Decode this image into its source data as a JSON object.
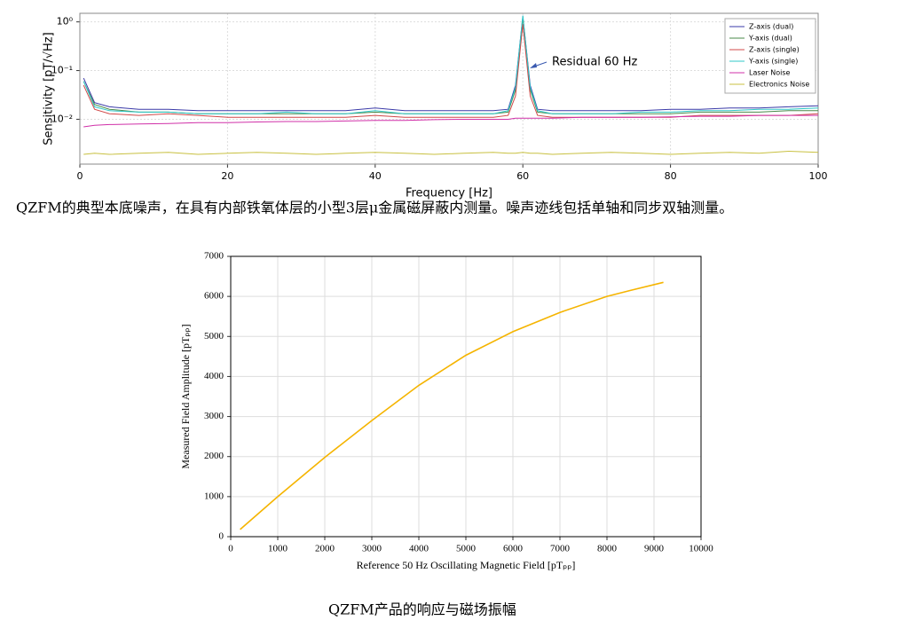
{
  "chart_data": [
    {
      "type": "line",
      "xlabel": "Frequency [Hz]",
      "ylabel": "Sensitivity [pT/√Hz]",
      "annotation": "Residual 60 Hz",
      "log_y": true,
      "grid": true,
      "legend": "upper right",
      "xlim": [
        0,
        100
      ],
      "xticks": [
        0,
        20,
        40,
        60,
        80,
        100
      ],
      "ylim": [
        0.0012,
        1.5
      ],
      "yticks": [
        {
          "value": 0.01,
          "label": "10⁻²"
        },
        {
          "value": 0.1,
          "label": "10⁻¹"
        },
        {
          "value": 1,
          "label": "10⁰"
        }
      ],
      "x": [
        0.5,
        2,
        4,
        8,
        12,
        16,
        20,
        24,
        28,
        32,
        36,
        40,
        44,
        48,
        52,
        56,
        58,
        59,
        60,
        61,
        62,
        64,
        68,
        72,
        76,
        80,
        84,
        88,
        92,
        96,
        100
      ],
      "series": [
        {
          "name": "Z-axis (dual)",
          "color": "#3a3aa8",
          "values": [
            0.07,
            0.022,
            0.018,
            0.016,
            0.016,
            0.015,
            0.015,
            0.015,
            0.015,
            0.015,
            0.015,
            0.017,
            0.015,
            0.015,
            0.015,
            0.015,
            0.016,
            0.05,
            1.3,
            0.05,
            0.016,
            0.015,
            0.015,
            0.015,
            0.015,
            0.016,
            0.016,
            0.017,
            0.017,
            0.018,
            0.019
          ]
        },
        {
          "name": "Y-axis (dual)",
          "color": "#4a8a4a",
          "values": [
            0.06,
            0.02,
            0.016,
            0.014,
            0.014,
            0.013,
            0.013,
            0.013,
            0.013,
            0.013,
            0.013,
            0.014,
            0.013,
            0.013,
            0.013,
            0.013,
            0.014,
            0.04,
            1.2,
            0.04,
            0.014,
            0.013,
            0.013,
            0.013,
            0.013,
            0.013,
            0.014,
            0.014,
            0.014,
            0.015,
            0.015
          ]
        },
        {
          "name": "Z-axis (single)",
          "color": "#d04848",
          "values": [
            0.05,
            0.016,
            0.013,
            0.012,
            0.013,
            0.012,
            0.011,
            0.011,
            0.011,
            0.011,
            0.011,
            0.012,
            0.011,
            0.011,
            0.011,
            0.011,
            0.012,
            0.03,
            0.9,
            0.03,
            0.012,
            0.011,
            0.011,
            0.011,
            0.011,
            0.011,
            0.012,
            0.012,
            0.012,
            0.012,
            0.013
          ]
        },
        {
          "name": "Y-axis (single)",
          "color": "#30c8c8",
          "values": [
            0.06,
            0.018,
            0.015,
            0.014,
            0.014,
            0.013,
            0.013,
            0.013,
            0.014,
            0.013,
            0.013,
            0.015,
            0.013,
            0.013,
            0.013,
            0.013,
            0.015,
            0.045,
            1.35,
            0.045,
            0.015,
            0.013,
            0.013,
            0.013,
            0.014,
            0.014,
            0.015,
            0.015,
            0.016,
            0.016,
            0.017
          ]
        },
        {
          "name": "Laser Noise",
          "color": "#d030a8",
          "values": [
            0.007,
            0.0075,
            0.0078,
            0.008,
            0.0082,
            0.0085,
            0.0085,
            0.0088,
            0.009,
            0.009,
            0.0092,
            0.0095,
            0.0095,
            0.0098,
            0.01,
            0.01,
            0.01,
            0.0105,
            0.0105,
            0.0105,
            0.0105,
            0.0105,
            0.011,
            0.011,
            0.011,
            0.0112,
            0.0115,
            0.0115,
            0.012,
            0.012,
            0.012
          ]
        },
        {
          "name": "Electronics Noise",
          "color": "#c8c040",
          "values": [
            0.0019,
            0.002,
            0.0019,
            0.002,
            0.0021,
            0.0019,
            0.002,
            0.0021,
            0.002,
            0.0019,
            0.002,
            0.0021,
            0.002,
            0.0019,
            0.002,
            0.0021,
            0.002,
            0.002,
            0.0021,
            0.002,
            0.002,
            0.0019,
            0.002,
            0.0021,
            0.002,
            0.0019,
            0.002,
            0.0021,
            0.002,
            0.0022,
            0.0021
          ]
        }
      ]
    },
    {
      "type": "line",
      "xlabel": "Reference 50 Hz Oscillating Magnetic Field [pTₚₚ]",
      "ylabel": "Measured Field Amplitude [pTₚₚ]",
      "grid": true,
      "xlim": [
        0,
        10000
      ],
      "xticks": [
        0,
        1000,
        2000,
        3000,
        4000,
        5000,
        6000,
        7000,
        8000,
        9000,
        10000
      ],
      "ylim": [
        0,
        7000
      ],
      "yticks": [
        0,
        1000,
        2000,
        3000,
        4000,
        5000,
        6000,
        7000
      ],
      "x": [
        200,
        1000,
        2000,
        3000,
        4000,
        5000,
        6000,
        7000,
        8000,
        8500,
        9200
      ],
      "color": "#f5b400",
      "values": [
        180,
        1000,
        1980,
        2900,
        3780,
        4530,
        5120,
        5600,
        6000,
        6150,
        6350
      ]
    }
  ],
  "captions": [
    "QZFM的典型本底噪声，在具有内部铁氧体层的小型3层μ金属磁屏蔽内测量。噪声迹线包括单轴和同步双轴测量。",
    "QZFM产品的响应与磁场振幅"
  ]
}
